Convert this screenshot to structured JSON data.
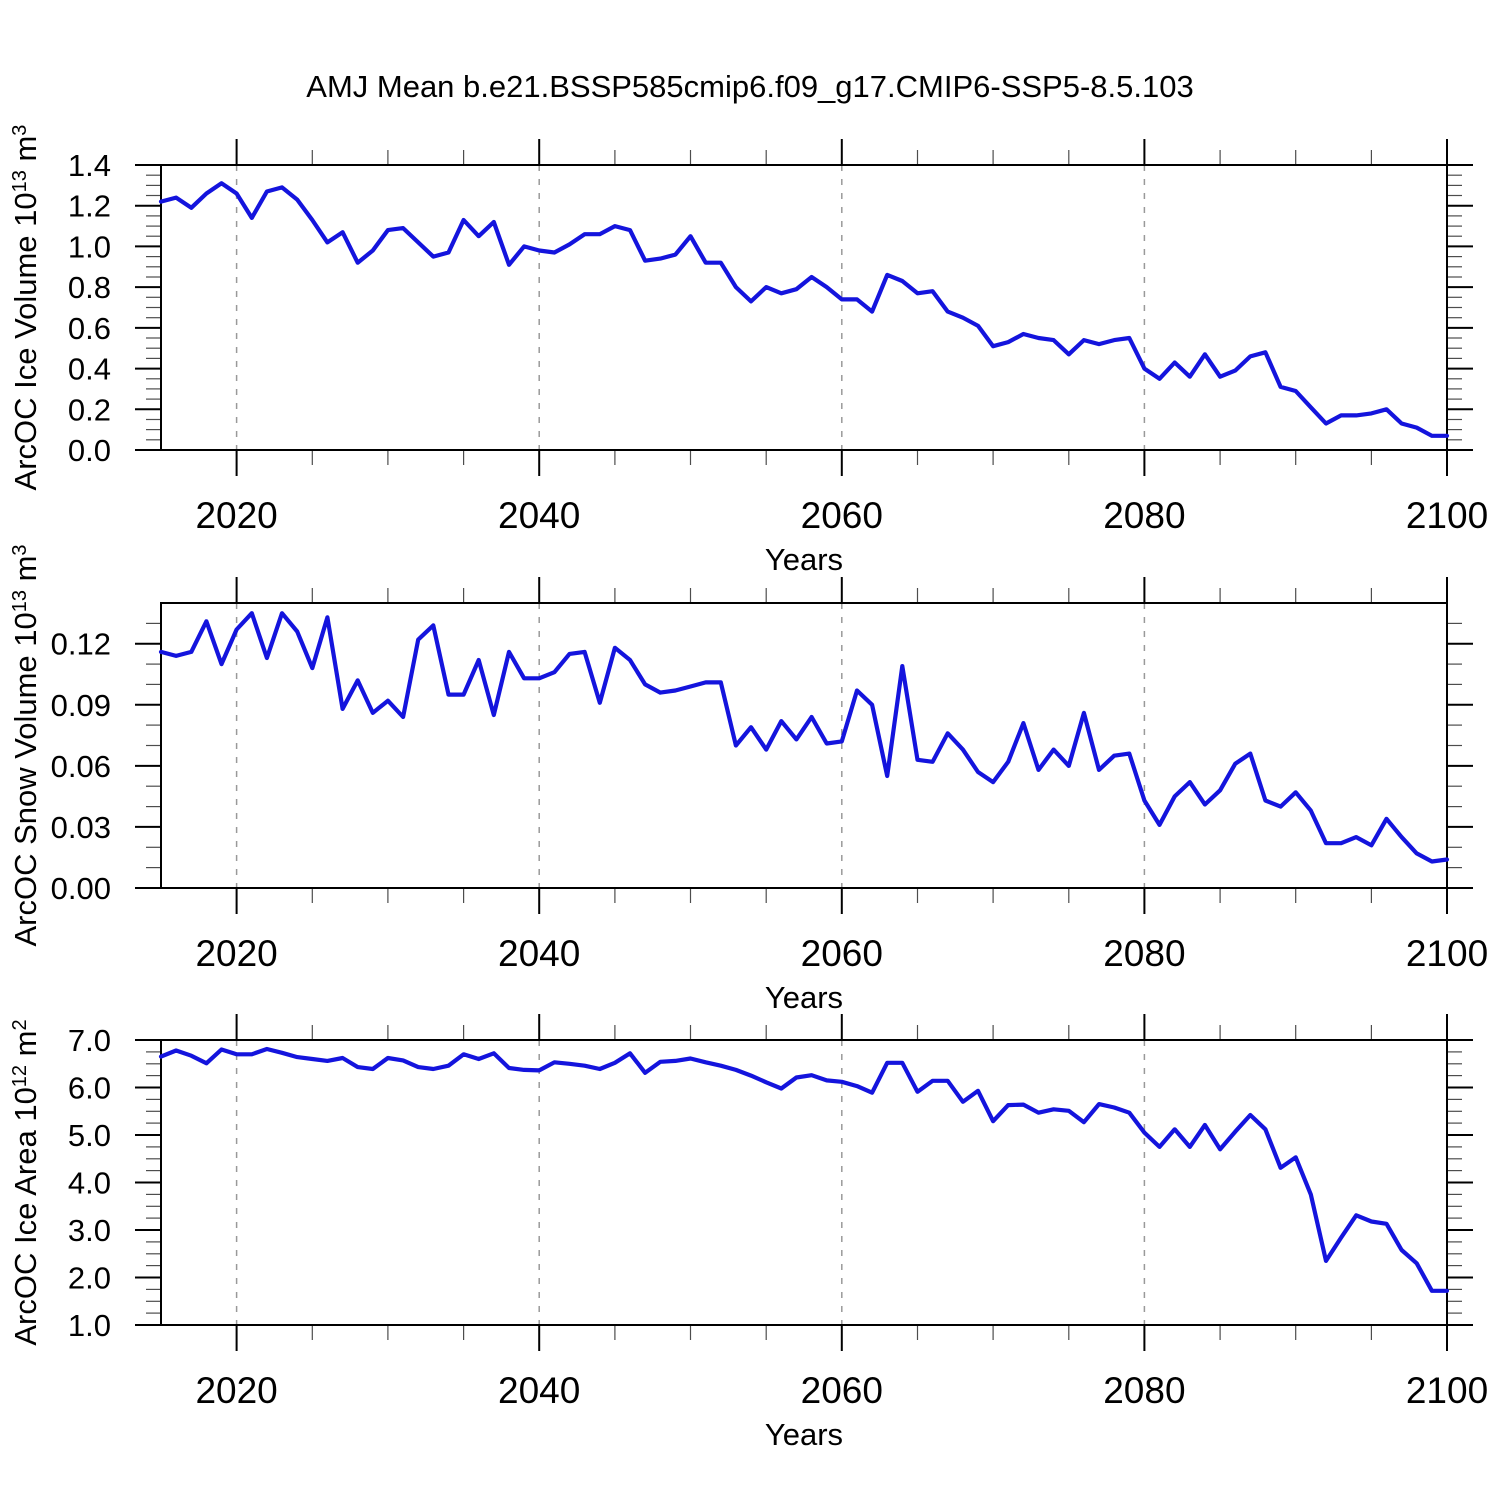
{
  "title": "AMJ Mean b.e21.BSSP585cmip6.f09_g17.CMIP6-SSP5-8.5.103",
  "background": "#ffffff",
  "style": {
    "line_color": "#1414dd",
    "grid_color": "#999999",
    "frame_color": "#000000",
    "text_color": "#000000"
  },
  "x_axis": {
    "label": "Years",
    "range": [
      2015,
      2100
    ],
    "major_ticks": [
      2020,
      2040,
      2060,
      2080,
      2100
    ],
    "major_tick_labels": [
      "2020",
      "2040",
      "2060",
      "2080",
      "2100"
    ],
    "minor_tick_step": 5,
    "gridlines_at": [
      2020,
      2040,
      2060,
      2080
    ]
  },
  "chart_data": [
    {
      "type": "line",
      "name": "arcoc-ice-volume",
      "ylabel": "ArcOC Ice Volume 10^13 m^3",
      "ylabel_parts": [
        {
          "t": "ArcOC Ice Volume 10"
        },
        {
          "t": "13",
          "sup": true
        },
        {
          "t": " m"
        },
        {
          "t": "3",
          "sup": true
        }
      ],
      "xlabel": "Years",
      "xlim": [
        2015,
        2100
      ],
      "ylim": [
        0,
        1.4
      ],
      "ytick_values": [
        0.0,
        0.2,
        0.4,
        0.6,
        0.8,
        1.0,
        1.2,
        1.4
      ],
      "ytick_labels": [
        "0.0",
        "0.2",
        "0.4",
        "0.6",
        "0.8",
        "1.0",
        "1.2",
        "1.4"
      ],
      "y_minor_step": 0.05,
      "grid": "x-dashed",
      "legend": "none",
      "x": {
        "start": 2015,
        "end": 2100,
        "step": 1
      },
      "values": [
        1.22,
        1.24,
        1.19,
        1.26,
        1.31,
        1.26,
        1.14,
        1.27,
        1.29,
        1.23,
        1.13,
        1.02,
        1.07,
        0.92,
        0.98,
        1.08,
        1.09,
        1.02,
        0.95,
        0.97,
        1.13,
        1.05,
        1.12,
        0.91,
        1.0,
        0.98,
        0.97,
        1.01,
        1.06,
        1.06,
        1.1,
        1.08,
        0.93,
        0.94,
        0.96,
        1.05,
        0.92,
        0.92,
        0.8,
        0.73,
        0.8,
        0.77,
        0.79,
        0.85,
        0.8,
        0.74,
        0.74,
        0.68,
        0.86,
        0.83,
        0.77,
        0.78,
        0.68,
        0.65,
        0.61,
        0.51,
        0.53,
        0.57,
        0.55,
        0.54,
        0.47,
        0.54,
        0.52,
        0.54,
        0.55,
        0.4,
        0.35,
        0.43,
        0.36,
        0.47,
        0.36,
        0.39,
        0.46,
        0.48,
        0.31,
        0.29,
        0.21,
        0.13,
        0.17,
        0.17,
        0.18,
        0.2,
        0.13,
        0.11,
        0.07,
        0.07
      ]
    },
    {
      "type": "line",
      "name": "arcoc-snow-volume",
      "ylabel": "ArcOC Snow Volume 10^13 m^3",
      "ylabel_parts": [
        {
          "t": "ArcOC Snow Volume 10"
        },
        {
          "t": "13",
          "sup": true
        },
        {
          "t": " m"
        },
        {
          "t": "3",
          "sup": true
        }
      ],
      "xlabel": "Years",
      "xlim": [
        2015,
        2100
      ],
      "ylim": [
        0,
        0.14
      ],
      "ytick_values": [
        0.0,
        0.03,
        0.06,
        0.09,
        0.12
      ],
      "ytick_labels": [
        "0.00",
        "0.03",
        "0.06",
        "0.09",
        "0.12"
      ],
      "y_minor_step": 0.01,
      "grid": "x-dashed",
      "legend": "none",
      "x": {
        "start": 2015,
        "end": 2100,
        "step": 1
      },
      "values": [
        0.116,
        0.114,
        0.116,
        0.131,
        0.11,
        0.127,
        0.135,
        0.113,
        0.135,
        0.126,
        0.108,
        0.133,
        0.088,
        0.102,
        0.086,
        0.092,
        0.084,
        0.122,
        0.129,
        0.095,
        0.095,
        0.112,
        0.085,
        0.116,
        0.103,
        0.103,
        0.106,
        0.115,
        0.116,
        0.091,
        0.118,
        0.112,
        0.1,
        0.096,
        0.097,
        0.099,
        0.101,
        0.101,
        0.07,
        0.079,
        0.068,
        0.082,
        0.073,
        0.084,
        0.071,
        0.072,
        0.097,
        0.09,
        0.055,
        0.109,
        0.063,
        0.062,
        0.076,
        0.068,
        0.057,
        0.052,
        0.062,
        0.081,
        0.058,
        0.068,
        0.06,
        0.086,
        0.058,
        0.065,
        0.066,
        0.043,
        0.031,
        0.045,
        0.052,
        0.041,
        0.048,
        0.061,
        0.066,
        0.043,
        0.04,
        0.047,
        0.038,
        0.022,
        0.022,
        0.025,
        0.021,
        0.034,
        0.025,
        0.017,
        0.013,
        0.014
      ]
    },
    {
      "type": "line",
      "name": "arcoc-ice-area",
      "ylabel": "ArcOC Ice Area 10^12 m^2",
      "ylabel_parts": [
        {
          "t": "ArcOC Ice Area 10"
        },
        {
          "t": "12",
          "sup": true
        },
        {
          "t": " m"
        },
        {
          "t": "2",
          "sup": true
        }
      ],
      "xlabel": "Years",
      "xlim": [
        2015,
        2100
      ],
      "ylim": [
        1.0,
        7.0
      ],
      "ytick_values": [
        1.0,
        2.0,
        3.0,
        4.0,
        5.0,
        6.0,
        7.0
      ],
      "ytick_labels": [
        "1.0",
        "2.0",
        "3.0",
        "4.0",
        "5.0",
        "6.0",
        "7.0"
      ],
      "y_minor_step": 0.25,
      "grid": "x-dashed",
      "legend": "none",
      "x": {
        "start": 2015,
        "end": 2100,
        "step": 1
      },
      "values": [
        6.65,
        6.78,
        6.67,
        6.51,
        6.8,
        6.7,
        6.7,
        6.81,
        6.73,
        6.64,
        6.6,
        6.56,
        6.62,
        6.43,
        6.39,
        6.62,
        6.57,
        6.43,
        6.39,
        6.46,
        6.7,
        6.6,
        6.72,
        6.41,
        6.37,
        6.36,
        6.53,
        6.5,
        6.46,
        6.39,
        6.52,
        6.72,
        6.31,
        6.54,
        6.56,
        6.61,
        6.53,
        6.46,
        6.37,
        6.25,
        6.11,
        5.98,
        6.21,
        6.26,
        6.15,
        6.12,
        6.03,
        5.89,
        6.52,
        6.52,
        5.91,
        6.14,
        6.14,
        5.7,
        5.93,
        5.29,
        5.63,
        5.64,
        5.47,
        5.54,
        5.51,
        5.27,
        5.65,
        5.58,
        5.47,
        5.05,
        4.75,
        5.12,
        4.75,
        5.21,
        4.7,
        5.07,
        5.42,
        5.12,
        4.31,
        4.53,
        3.75,
        2.35,
        2.84,
        3.31,
        3.18,
        3.13,
        2.58,
        2.3,
        1.72,
        1.72
      ]
    }
  ]
}
